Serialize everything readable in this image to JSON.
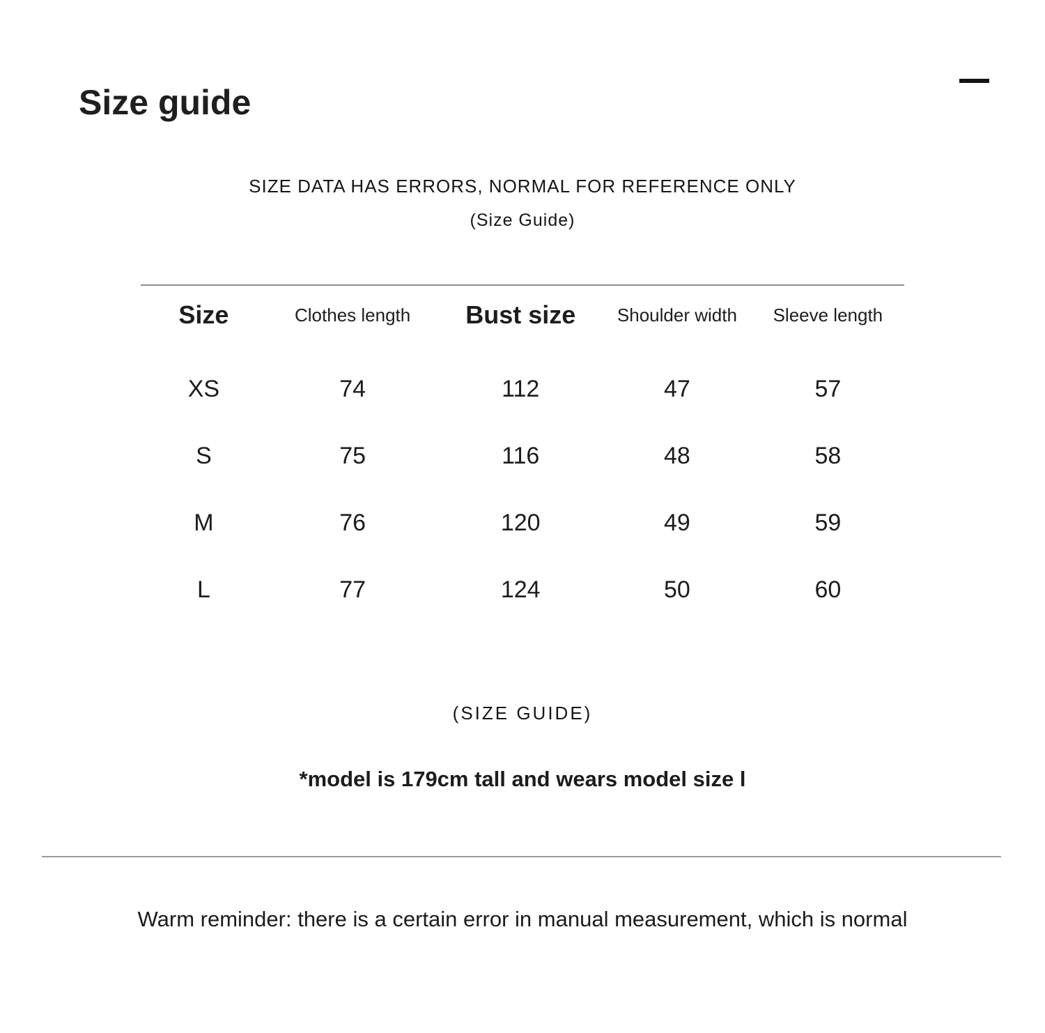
{
  "page": {
    "background": "#ffffff",
    "text_color": "#1a1a1a",
    "divider_color": "#8f8f8f"
  },
  "header": {
    "title": "Size guide",
    "collapse_icon": "minus"
  },
  "notice": {
    "line1": "SIZE DATA HAS ERRORS, NORMAL FOR REFERENCE ONLY",
    "line2": "(Size Guide)"
  },
  "size_table": {
    "columns": [
      "Size",
      "Clothes length",
      "Bust size",
      "Shoulder width",
      "Sleeve length"
    ],
    "rows": [
      {
        "size": "XS",
        "values": [
          "74",
          "112",
          "47",
          "57"
        ]
      },
      {
        "size": "S",
        "values": [
          "75",
          "116",
          "48",
          "58"
        ]
      },
      {
        "size": "M",
        "values": [
          "76",
          "120",
          "49",
          "59"
        ]
      },
      {
        "size": "L",
        "values": [
          "77",
          "124",
          "50",
          "60"
        ]
      }
    ]
  },
  "footnotes": {
    "caption": "(SIZE GUIDE)",
    "model_note": "*model is 179cm tall and wears model size l",
    "reminder": "Warm reminder: there is a certain error in manual measurement, which is normal"
  }
}
